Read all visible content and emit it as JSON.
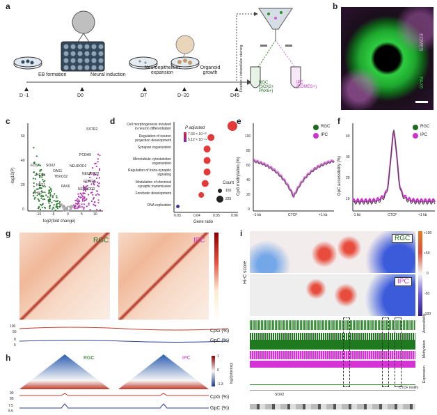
{
  "panel_letters": [
    "a",
    "b",
    "c",
    "d",
    "e",
    "f",
    "g",
    "h",
    "i"
  ],
  "a": {
    "stage_labels": [
      "EB formation",
      "Neural induction",
      "Neuroepithelium\nexpansion",
      "Organoid\ngrowth"
    ],
    "day_labels": [
      "D -1",
      "D0",
      "D7",
      "D~20",
      "D45"
    ],
    "side_label": "Fixation + intracellular staining",
    "rgc_label": "RGC\n(SOX2+\nPAX6+)",
    "ipc_label": "IPC\n(EOMES+)"
  },
  "b": {
    "label_eomes": "EOMES",
    "label_pax6": "PAX6"
  },
  "c": {
    "ylabel": "-log10(P)",
    "xlabel": "log2(fold change)",
    "xticks": [
      "-10",
      "-5",
      "0",
      "5",
      "10"
    ],
    "yticks": [
      "0",
      "20",
      "40",
      "60"
    ],
    "left_genes": [
      "FOS",
      "SOX2",
      "HES5",
      "OAS1",
      "HES1",
      "TBXO32",
      "LHX2",
      "PAX6"
    ],
    "right_genes": [
      "SSTR2",
      "PCDH9",
      "NEUROD2",
      "NEUROD2",
      "EOMES",
      "NEUROD2"
    ]
  },
  "d": {
    "terms": [
      "Cell morphogenesis involved\nin neuron differentiation",
      "Regulation of neuron\nprojection development",
      "Synapse organization",
      "Microtubule cytoskeleton\norganization",
      "Regulation of trans-synaptic\nsignaling",
      "Modulation of chemical\nsynaptic transmission",
      "Forebrain development",
      "DNA replication"
    ],
    "xlabel": "Gene ratio",
    "xticks": [
      "0.03",
      "0.04",
      "0.05",
      "0.06"
    ],
    "legend_title": "P adjusted",
    "legend_high": "7.33 × 10⁻³⁰",
    "legend_low": "5.12 × 10⁻¹⁹",
    "count_title": "Count",
    "count_values": [
      "150",
      "225"
    ]
  },
  "e": {
    "ylabel": "CpG methylation (%)",
    "yticks": [
      "0",
      "20",
      "40",
      "60",
      "80",
      "100"
    ],
    "xticks": [
      "-1 kb",
      "CTCF",
      "+1 kb"
    ],
    "legend": [
      "RGC",
      "IPC"
    ]
  },
  "f": {
    "ylabel": "GpC accessibility (%)",
    "yticks": [
      "10",
      "20",
      "30",
      "40"
    ],
    "xticks": [
      "-1 kb",
      "CTCF",
      "+1 kb"
    ],
    "legend": [
      "RGC",
      "IPC"
    ]
  },
  "g": {
    "label_rgc": "RGC",
    "label_ipc": "IPC",
    "track_labels": [
      "CpG (%)",
      "GpC (%)"
    ],
    "track_ticks_cpg": [
      "100",
      "50"
    ],
    "track_ticks_gpc": [
      "8",
      "5"
    ]
  },
  "h": {
    "label_rgc": "RGC",
    "label_ipc": "IPC",
    "scale_label": "log2(obs/exp)",
    "scale_ticks": [
      "1",
      "0",
      "-1.3"
    ],
    "track_labels": [
      "CpG (%)",
      "GpC (%)"
    ],
    "track_ticks_cpg": [
      "90",
      "85"
    ],
    "track_ticks_gpc": [
      "7.5",
      "5.5"
    ]
  },
  "i": {
    "label_rgc": "RGC",
    "label_ipc": "IPC",
    "ylabel": "Hi-C score",
    "scale_ticks": [
      "+100",
      "+50",
      "0",
      "-50",
      "-100"
    ],
    "track_labels": [
      "Expression",
      "Methylation",
      "Accessibility"
    ],
    "gene_label": "SOX2",
    "ctcf_label": "CTCF motifs"
  },
  "colors": {
    "rgc": "#1e6b1e",
    "ipc": "#cc33cc",
    "hic_red": "#c0392b",
    "pax6_green": "#2ecc40"
  }
}
